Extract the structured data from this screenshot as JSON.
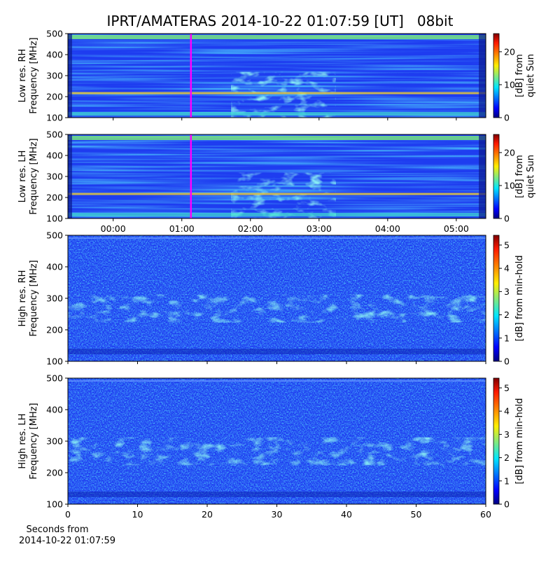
{
  "figure": {
    "title": "IPRT/AMATERAS 2014-10-22 01:07:59 [UT]   08bit",
    "xlabel": [
      "Seconds from",
      "2014-10-22 01:07:59"
    ]
  },
  "chart_data": [
    {
      "type": "spectrogram",
      "ylabel": [
        "Low res. RH",
        "Frequency [MHz]"
      ],
      "ylim": [
        100,
        500
      ],
      "yticks": [
        100,
        200,
        300,
        400,
        500
      ],
      "xlim": [
        -0.66,
        5.43
      ],
      "xticks": [
        {
          "value": 0,
          "label": "00:00"
        },
        {
          "value": 1,
          "label": "01:00"
        },
        {
          "value": 2,
          "label": "02:00"
        },
        {
          "value": 3,
          "label": "03:00"
        },
        {
          "value": 4,
          "label": "04:00"
        },
        {
          "value": 5,
          "label": "05:00"
        }
      ],
      "xticklabels": false,
      "marker_x": 1.1331,
      "marker_color": "#ff00ff",
      "colormap": "jet",
      "clim": [
        0,
        25.5
      ],
      "cticks": [
        0,
        10,
        20
      ],
      "clabel": [
        "[dB] from",
        "quiet Sun"
      ],
      "resolution": "low"
    },
    {
      "type": "spectrogram",
      "ylabel": [
        "Low res. LH",
        "Frequency [MHz]"
      ],
      "ylim": [
        100,
        500
      ],
      "yticks": [
        100,
        200,
        300,
        400,
        500
      ],
      "xlim": [
        -0.66,
        5.43
      ],
      "xticks": [
        {
          "value": 0,
          "label": "00:00"
        },
        {
          "value": 1,
          "label": "01:00"
        },
        {
          "value": 2,
          "label": "02:00"
        },
        {
          "value": 3,
          "label": "03:00"
        },
        {
          "value": 4,
          "label": "04:00"
        },
        {
          "value": 5,
          "label": "05:00"
        }
      ],
      "xticklabels": true,
      "marker_x": 1.1331,
      "marker_color": "#ff00ff",
      "colormap": "jet",
      "clim": [
        0,
        25.5
      ],
      "cticks": [
        0,
        10,
        20
      ],
      "clabel": [
        "[dB] from",
        "quiet Sun"
      ],
      "resolution": "low"
    },
    {
      "type": "spectrogram",
      "ylabel": [
        "High res. RH",
        "Frequency [MHz]"
      ],
      "ylim": [
        100,
        500
      ],
      "yticks": [
        100,
        200,
        300,
        400,
        500
      ],
      "xlim": [
        0,
        60
      ],
      "xticks": [
        0,
        10,
        20,
        30,
        40,
        50,
        60
      ],
      "xticklabels": false,
      "colormap": "jet",
      "clim": [
        0,
        5.42
      ],
      "cticks": [
        0,
        1,
        2,
        3,
        4,
        5
      ],
      "clabel": [
        "[dB] from min-hold"
      ],
      "resolution": "high"
    },
    {
      "type": "spectrogram",
      "ylabel": [
        "High res. LH",
        "Frequency [MHz]"
      ],
      "ylim": [
        100,
        500
      ],
      "yticks": [
        100,
        200,
        300,
        400,
        500
      ],
      "xlim": [
        0,
        60
      ],
      "xticks": [
        0,
        10,
        20,
        30,
        40,
        50,
        60
      ],
      "xticklabels": true,
      "colormap": "jet",
      "clim": [
        0,
        5.42
      ],
      "cticks": [
        0,
        1,
        2,
        3,
        4,
        5
      ],
      "clabel": [
        "[dB] from min-hold"
      ],
      "resolution": "high"
    }
  ]
}
